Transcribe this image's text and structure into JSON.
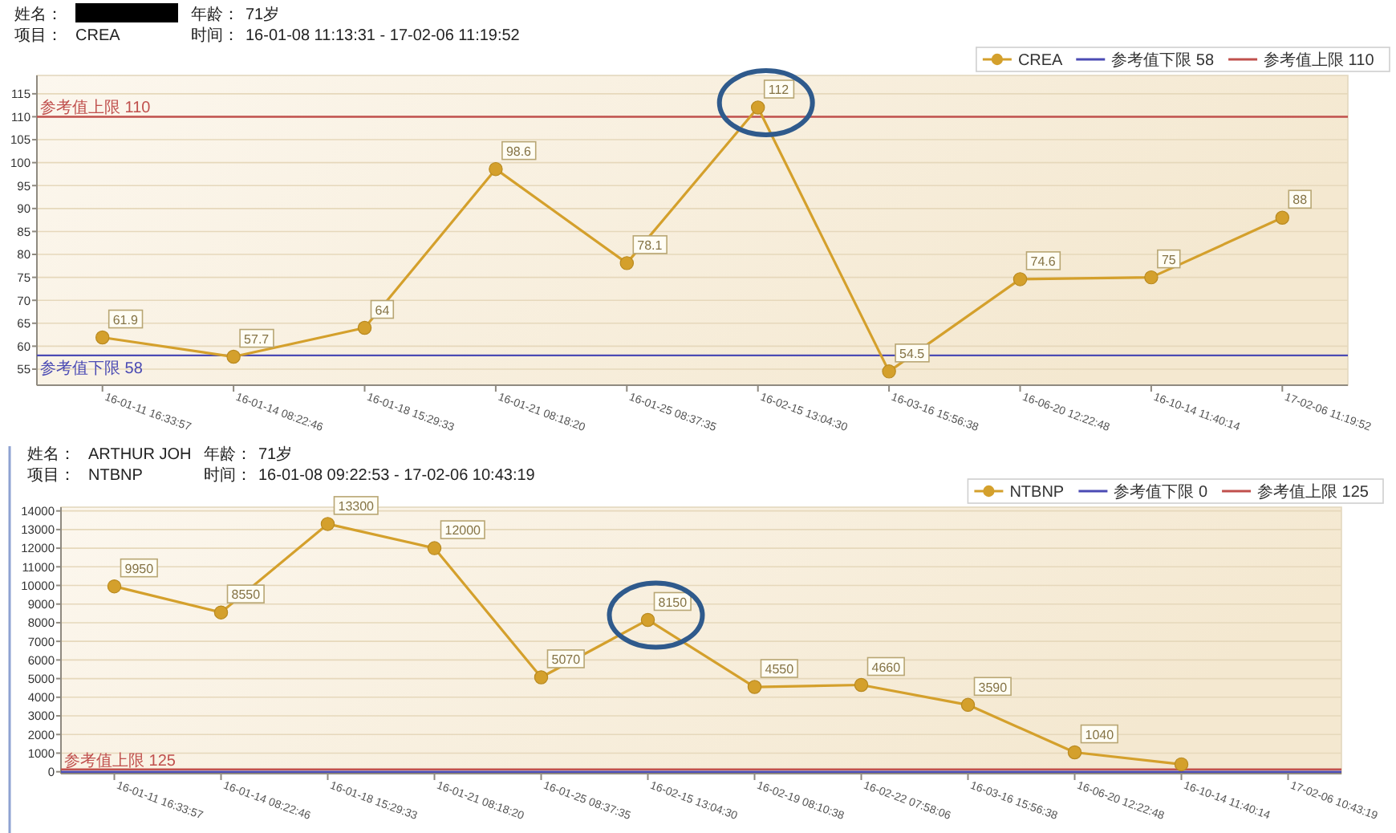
{
  "chart_data": [
    {
      "type": "line",
      "annotations": [
        "姓名：    年龄：  71岁",
        "项目：  CREA  时间：  16-01-08 11:13:31 - 17-02-06 11:19:52"
      ],
      "categories": [
        "16-01-11 16:33:57",
        "16-01-14 08:22:46",
        "16-01-18 15:29:33",
        "16-01-21 08:18:20",
        "16-01-25 08:37:35",
        "16-02-15 13:04:30",
        "16-03-16 15:56:38",
        "16-06-20 12:22:48",
        "16-10-14 11:40:14",
        "17-02-06 11:19:52"
      ],
      "series": [
        {
          "name": "CREA",
          "color": "#d4a02c",
          "values": [
            61.9,
            57.7,
            64,
            98.6,
            78.1,
            112,
            54.5,
            74.6,
            75,
            88
          ]
        }
      ],
      "ylim": [
        51.5,
        119
      ],
      "yticks": [
        55,
        60,
        65,
        70,
        75,
        80,
        85,
        90,
        95,
        100,
        105,
        110,
        115
      ],
      "grid": "y",
      "legend": "top right",
      "marker": "circle",
      "line_style": "solid",
      "data_labels": true,
      "ref_lines": [
        {
          "axis": "y",
          "value": 58,
          "label": "参考值下限 58",
          "color": "#4b4bb4"
        },
        {
          "axis": "y",
          "value": 110,
          "label": "参考值上限 110",
          "color": "#c0504d"
        }
      ]
    },
    {
      "type": "line",
      "annotations": [
        "姓名：  ARTHUR JOH  年龄：  71岁",
        "项目：  NTBNP  时间：  16-01-08 09:22:53 - 17-02-06 10:43:19"
      ],
      "categories": [
        "16-01-11 16:33:57",
        "16-01-14 08:22:46",
        "16-01-18 15:29:33",
        "16-01-21 08:18:20",
        "16-01-25 08:37:35",
        "16-02-15 13:04:30",
        "16-02-19 08:10:38",
        "16-02-22 07:58:06",
        "16-03-16 15:56:38",
        "16-06-20 12:22:48",
        "16-10-14 11:40:14",
        "17-02-06 10:43:19"
      ],
      "series": [
        {
          "name": "NTBNP",
          "color": "#d4a02c",
          "values": [
            9950,
            8550,
            13300,
            12000,
            5070,
            8150,
            4550,
            4660,
            3590,
            1040,
            400,
            null
          ],
          "value_labels": [
            "9950",
            "8550",
            "13300",
            "12000",
            "5070",
            "8150",
            "4550",
            "4660",
            "3590",
            "1040",
            null,
            null
          ]
        }
      ],
      "ylim": [
        -100,
        14200
      ],
      "yticks": [
        0,
        1000,
        2000,
        3000,
        4000,
        5000,
        6000,
        7000,
        8000,
        9000,
        10000,
        11000,
        12000,
        13000,
        14000
      ],
      "grid": "y",
      "legend": "top right",
      "marker": "circle",
      "line_style": "solid",
      "ref_lines": [
        {
          "axis": "y",
          "value": 0,
          "label": "参考值下限 0",
          "color": "#4b4bb4"
        },
        {
          "axis": "y",
          "value": 125,
          "label": "参考值上限 125",
          "color": "#c0504d"
        }
      ]
    }
  ]
}
